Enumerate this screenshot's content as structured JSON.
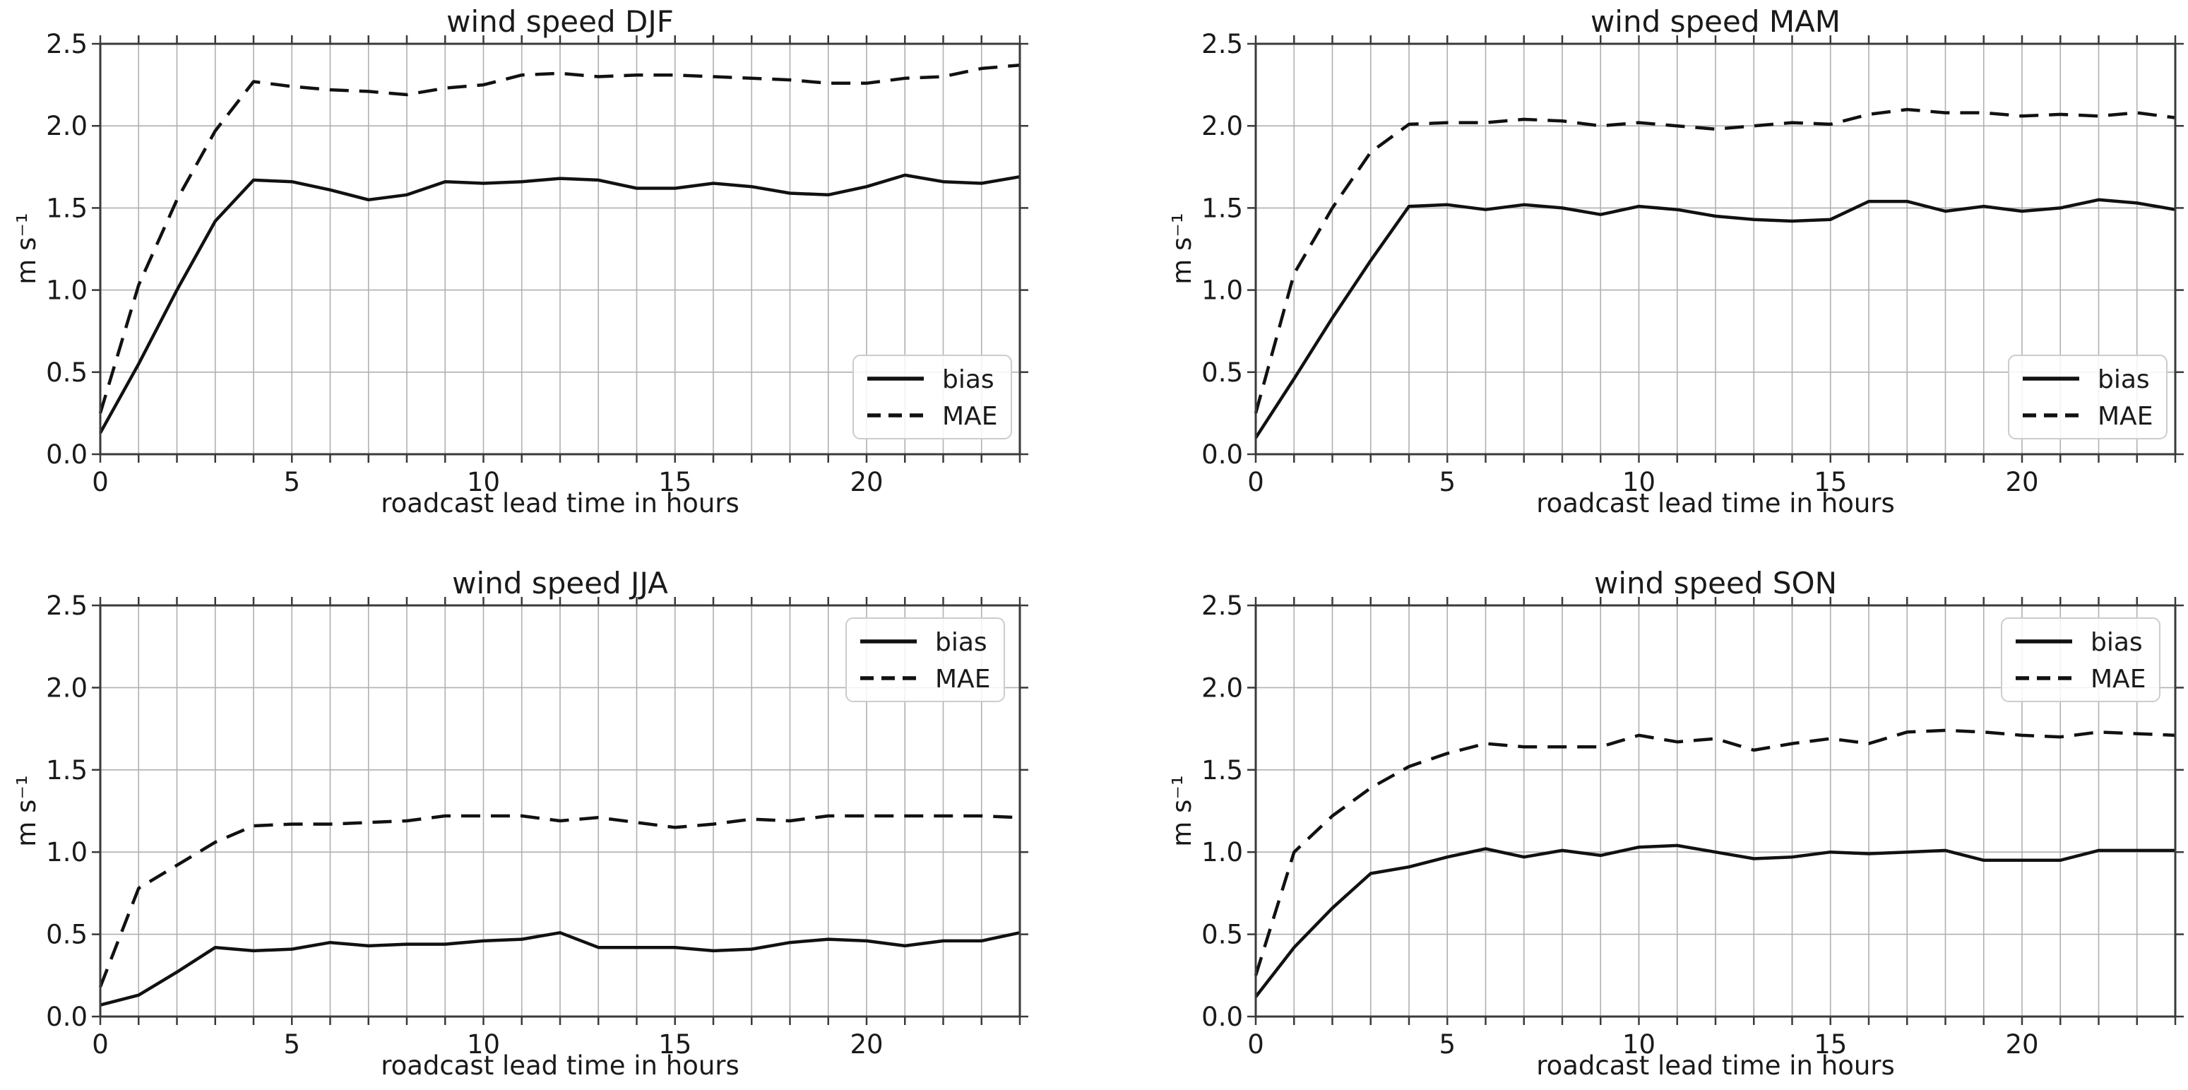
{
  "page": {
    "background": "#ffffff",
    "text_color": "#1a1a1a",
    "grid_color": "#b0b0b0",
    "spine_color": "#3a3a3a",
    "line_color": "#111111",
    "legend_border_color": "#cccccc",
    "legend_fill_color": "#ffffff"
  },
  "chart_data": [
    {
      "type": "line",
      "title": "wind speed DJF",
      "xlabel": "roadcast lead time in hours",
      "ylabel": "m s⁻¹",
      "xlim": [
        0,
        24
      ],
      "ylim": [
        0,
        2.5
      ],
      "xticks": [
        0,
        5,
        10,
        15,
        20
      ],
      "xtick_labels": [
        "0",
        "5",
        "10",
        "15",
        "20"
      ],
      "yticks": [
        0,
        0.5,
        1.0,
        1.5,
        2.0,
        2.5
      ],
      "ytick_labels": [
        "0.0",
        "0.5",
        "1.0",
        "1.5",
        "2.0",
        "2.5"
      ],
      "minor_x_every": 1,
      "grid": true,
      "legend_loc": "lower right",
      "x": [
        0,
        1,
        2,
        3,
        4,
        5,
        6,
        7,
        8,
        9,
        10,
        11,
        12,
        13,
        14,
        15,
        16,
        17,
        18,
        19,
        20,
        21,
        22,
        23,
        24
      ],
      "series": [
        {
          "name": "bias",
          "style": "solid",
          "values": [
            0.13,
            0.55,
            1.0,
            1.42,
            1.67,
            1.66,
            1.61,
            1.55,
            1.58,
            1.66,
            1.65,
            1.66,
            1.68,
            1.67,
            1.62,
            1.62,
            1.65,
            1.63,
            1.59,
            1.58,
            1.63,
            1.7,
            1.66,
            1.65,
            1.69
          ]
        },
        {
          "name": "MAE",
          "style": "dashed",
          "values": [
            0.25,
            1.03,
            1.55,
            1.97,
            2.27,
            2.24,
            2.22,
            2.21,
            2.19,
            2.23,
            2.25,
            2.31,
            2.32,
            2.3,
            2.31,
            2.31,
            2.3,
            2.29,
            2.28,
            2.26,
            2.26,
            2.29,
            2.3,
            2.35,
            2.37
          ]
        }
      ]
    },
    {
      "type": "line",
      "title": "wind speed MAM",
      "xlabel": "roadcast lead time in hours",
      "ylabel": "m s⁻¹",
      "xlim": [
        0,
        24
      ],
      "ylim": [
        0,
        2.5
      ],
      "xticks": [
        0,
        5,
        10,
        15,
        20
      ],
      "xtick_labels": [
        "0",
        "5",
        "10",
        "15",
        "20"
      ],
      "yticks": [
        0,
        0.5,
        1.0,
        1.5,
        2.0,
        2.5
      ],
      "ytick_labels": [
        "0.0",
        "0.5",
        "1.0",
        "1.5",
        "2.0",
        "2.5"
      ],
      "minor_x_every": 1,
      "grid": true,
      "legend_loc": "lower right",
      "x": [
        0,
        1,
        2,
        3,
        4,
        5,
        6,
        7,
        8,
        9,
        10,
        11,
        12,
        13,
        14,
        15,
        16,
        17,
        18,
        19,
        20,
        21,
        22,
        23,
        24
      ],
      "series": [
        {
          "name": "bias",
          "style": "solid",
          "values": [
            0.1,
            0.46,
            0.83,
            1.18,
            1.51,
            1.52,
            1.49,
            1.52,
            1.5,
            1.46,
            1.51,
            1.49,
            1.45,
            1.43,
            1.42,
            1.43,
            1.54,
            1.54,
            1.48,
            1.51,
            1.48,
            1.5,
            1.55,
            1.53,
            1.49
          ]
        },
        {
          "name": "MAE",
          "style": "dashed",
          "values": [
            0.25,
            1.1,
            1.5,
            1.84,
            2.01,
            2.02,
            2.02,
            2.04,
            2.03,
            2.0,
            2.02,
            2.0,
            1.98,
            2.0,
            2.02,
            2.01,
            2.07,
            2.1,
            2.08,
            2.08,
            2.06,
            2.07,
            2.06,
            2.08,
            2.05
          ]
        }
      ]
    },
    {
      "type": "line",
      "title": "wind speed JJA",
      "xlabel": "roadcast lead time in hours",
      "ylabel": "m s⁻¹",
      "xlim": [
        0,
        24
      ],
      "ylim": [
        0,
        2.5
      ],
      "xticks": [
        0,
        5,
        10,
        15,
        20
      ],
      "xtick_labels": [
        "0",
        "5",
        "10",
        "15",
        "20"
      ],
      "yticks": [
        0,
        0.5,
        1.0,
        1.5,
        2.0,
        2.5
      ],
      "ytick_labels": [
        "0.0",
        "0.5",
        "1.0",
        "1.5",
        "2.0",
        "2.5"
      ],
      "minor_x_every": 1,
      "grid": true,
      "legend_loc": "upper right",
      "x": [
        0,
        1,
        2,
        3,
        4,
        5,
        6,
        7,
        8,
        9,
        10,
        11,
        12,
        13,
        14,
        15,
        16,
        17,
        18,
        19,
        20,
        21,
        22,
        23,
        24
      ],
      "series": [
        {
          "name": "bias",
          "style": "solid",
          "values": [
            0.07,
            0.13,
            0.27,
            0.42,
            0.4,
            0.41,
            0.45,
            0.43,
            0.44,
            0.44,
            0.46,
            0.47,
            0.51,
            0.42,
            0.42,
            0.42,
            0.4,
            0.41,
            0.45,
            0.47,
            0.46,
            0.43,
            0.46,
            0.46,
            0.51
          ]
        },
        {
          "name": "MAE",
          "style": "dashed",
          "values": [
            0.18,
            0.78,
            0.92,
            1.06,
            1.16,
            1.17,
            1.17,
            1.18,
            1.19,
            1.22,
            1.22,
            1.22,
            1.19,
            1.21,
            1.18,
            1.15,
            1.17,
            1.2,
            1.19,
            1.22,
            1.22,
            1.22,
            1.22,
            1.22,
            1.21
          ]
        }
      ]
    },
    {
      "type": "line",
      "title": "wind speed SON",
      "xlabel": "roadcast lead time in hours",
      "ylabel": "m s⁻¹",
      "xlim": [
        0,
        24
      ],
      "ylim": [
        0,
        2.5
      ],
      "xticks": [
        0,
        5,
        10,
        15,
        20
      ],
      "xtick_labels": [
        "0",
        "5",
        "10",
        "15",
        "20"
      ],
      "yticks": [
        0,
        0.5,
        1.0,
        1.5,
        2.0,
        2.5
      ],
      "ytick_labels": [
        "0.0",
        "0.5",
        "1.0",
        "1.5",
        "2.0",
        "2.5"
      ],
      "minor_x_every": 1,
      "grid": true,
      "legend_loc": "upper right",
      "x": [
        0,
        1,
        2,
        3,
        4,
        5,
        6,
        7,
        8,
        9,
        10,
        11,
        12,
        13,
        14,
        15,
        16,
        17,
        18,
        19,
        20,
        21,
        22,
        23,
        24
      ],
      "series": [
        {
          "name": "bias",
          "style": "solid",
          "values": [
            0.12,
            0.42,
            0.66,
            0.87,
            0.91,
            0.97,
            1.02,
            0.97,
            1.01,
            0.98,
            1.03,
            1.04,
            1.0,
            0.96,
            0.97,
            1.0,
            0.99,
            1.0,
            1.01,
            0.95,
            0.95,
            0.95,
            1.01,
            1.01,
            1.01
          ]
        },
        {
          "name": "MAE",
          "style": "dashed",
          "values": [
            0.25,
            1.0,
            1.22,
            1.39,
            1.52,
            1.6,
            1.66,
            1.64,
            1.64,
            1.64,
            1.71,
            1.67,
            1.69,
            1.62,
            1.66,
            1.69,
            1.66,
            1.73,
            1.74,
            1.73,
            1.71,
            1.7,
            1.73,
            1.72,
            1.71
          ]
        }
      ]
    }
  ]
}
